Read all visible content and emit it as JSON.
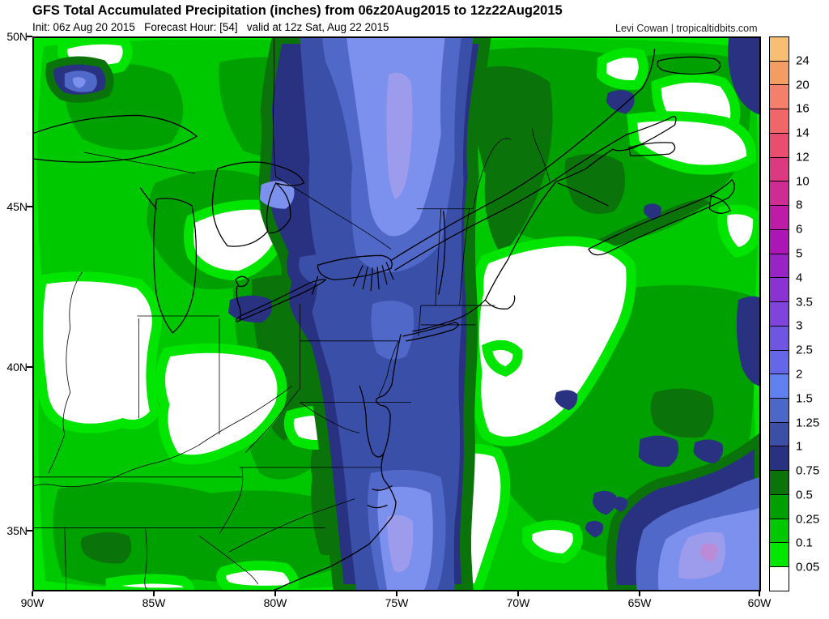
{
  "header": {
    "title": "GFS Total Accumulated Precipitation (inches) from 06z20Aug2015 to 12z22Aug2015",
    "init_line": "Init: 06z Aug 20 2015   Forecast Hour: [54]   valid at 12z Sat, Aug 22 2015",
    "credit": "Levi Cowan | tropicaltidbits.com"
  },
  "map": {
    "lat_labels": [
      "50N",
      "45N",
      "40N",
      "35N"
    ],
    "lon_labels": [
      "90W",
      "85W",
      "80W",
      "75W",
      "70W",
      "65W",
      "60W"
    ]
  },
  "colorbar": {
    "labels_top_to_bottom": [
      "24",
      "20",
      "16",
      "14",
      "12",
      "10",
      "8",
      "6",
      "5",
      "4",
      "3.5",
      "3",
      "2.5",
      "2",
      "1.5",
      "1.25",
      "1",
      "0.75",
      "0.5",
      "0.25",
      "0.1",
      "0.05"
    ],
    "colors_top_to_bottom": [
      "#F8BE73",
      "#F49D62",
      "#F4806C",
      "#F16668",
      "#E94D70",
      "#DC3A80",
      "#CE2C92",
      "#BC1CA6",
      "#AC15B6",
      "#9824C6",
      "#8B33D2",
      "#7F44DC",
      "#7055E2",
      "#6567E9",
      "#6180F0",
      "#4C67C8",
      "#3A4FA5",
      "#283280",
      "#0A730A",
      "#00A000",
      "#00C800",
      "#00E600",
      "#FFFFFF"
    ]
  },
  "chart_data": {
    "type": "heatmap",
    "title": "GFS Total Accumulated Precipitation (inches) from 06z20Aug2015 to 12z22Aug2015",
    "units": "inches",
    "lat_ticks": [
      "50N",
      "45N",
      "40N",
      "35N"
    ],
    "lon_ticks": [
      "90W",
      "85W",
      "80W",
      "75W",
      "70W",
      "65W",
      "60W"
    ],
    "scale_levels": [
      0.05,
      0.1,
      0.25,
      0.5,
      0.75,
      1,
      1.25,
      1.5,
      2,
      2.5,
      3,
      3.5,
      4,
      5,
      6,
      8,
      10,
      12,
      14,
      16,
      20,
      24
    ],
    "scale_colors_low_to_high": [
      "#FFFFFF",
      "#00E600",
      "#00C800",
      "#00A000",
      "#0A730A",
      "#283280",
      "#3A4FA5",
      "#4C67C8",
      "#6180F0",
      "#6567E9",
      "#7055E2",
      "#7F44DC",
      "#8B33D2",
      "#9824C6",
      "#AC15B6",
      "#BC1CA6",
      "#CE2C92",
      "#DC3A80",
      "#E94D70",
      "#F16668",
      "#F4806C",
      "#F49D62",
      "#F8BE73"
    ],
    "notes_visible_maxima_inches": "Main SW-NE band along the East Coast and interior Northeast peaks near 2-2.5; secondary offshore maximum near 60-63W peaks near 2.5-3.5"
  }
}
